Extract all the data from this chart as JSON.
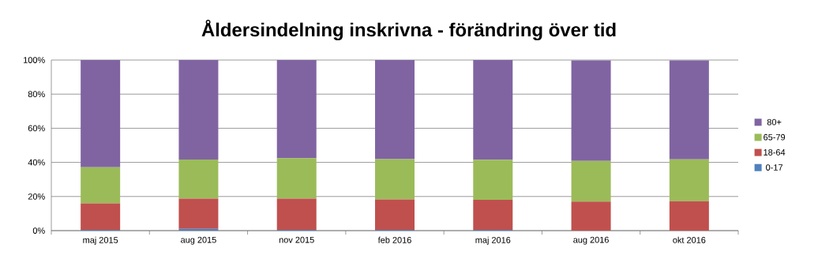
{
  "chart_data": {
    "type": "bar",
    "stacked": true,
    "title": "Åldersindelning inskrivna - förändring över tid",
    "categories": [
      "maj 2015",
      "aug 2015",
      "nov 2015",
      "feb 2016",
      "maj 2016",
      "aug 2016",
      "okt 2016"
    ],
    "series": [
      {
        "name": "0-17",
        "color": "#4f81bd",
        "values": [
          0.5,
          1,
          0.5,
          0.5,
          0.5,
          null,
          null
        ]
      },
      {
        "name": "18-64",
        "color": "#c0504d",
        "values": [
          15.5,
          17.8,
          18.3,
          17.8,
          17.5,
          17.0,
          17.3
        ]
      },
      {
        "name": "65-79",
        "color": "#9bbb59",
        "values": [
          21.2,
          22.9,
          23.7,
          23.6,
          23.6,
          23.9,
          24.5
        ]
      },
      {
        "name": "80+",
        "color": "#8064a2",
        "values": [
          62.8,
          58.3,
          57.5,
          58.1,
          58.4,
          58.9,
          58.0
        ]
      }
    ],
    "ylim": [
      0,
      100
    ],
    "yticks": [
      {
        "value": 0,
        "label": "0%"
      },
      {
        "value": 20,
        "label": "20%"
      },
      {
        "value": 40,
        "label": "40%"
      },
      {
        "value": 60,
        "label": "60%"
      },
      {
        "value": 80,
        "label": "80%"
      },
      {
        "value": 100,
        "label": "100%"
      }
    ],
    "grid": "y",
    "legend": "right"
  }
}
